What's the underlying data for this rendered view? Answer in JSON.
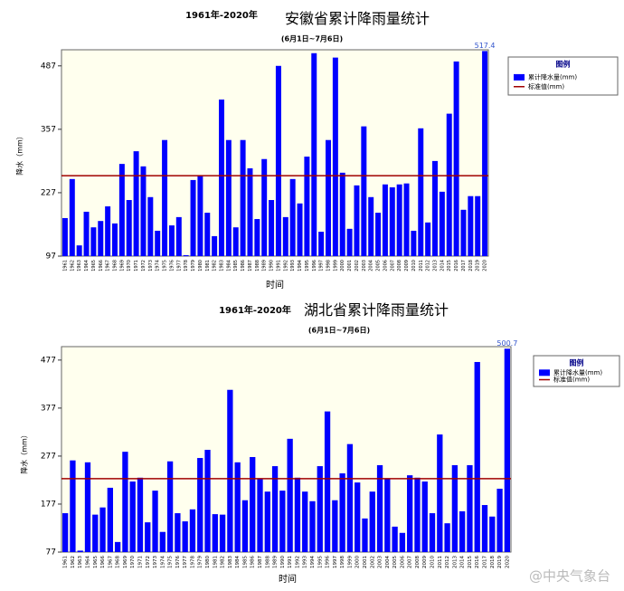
{
  "chart_data": [
    {
      "type": "bar",
      "pretitle": "1961年-2020年",
      "title": "安徽省累计降雨量统计",
      "subtitle": "(6月1日~7月6日)",
      "y_label": "降水（mm）",
      "x_label": "时间",
      "legend_title": "图例",
      "legend": "top-right",
      "categories": [
        "1961",
        "1962",
        "1963",
        "1964",
        "1965",
        "1966",
        "1967",
        "1968",
        "1969",
        "1970",
        "1971",
        "1972",
        "1973",
        "1974",
        "1975",
        "1976",
        "1977",
        "1978",
        "1979",
        "1980",
        "1981",
        "1982",
        "1983",
        "1984",
        "1985",
        "1986",
        "1987",
        "1988",
        "1989",
        "1990",
        "1991",
        "1992",
        "1993",
        "1994",
        "1995",
        "1996",
        "1997",
        "1998",
        "1999",
        "2000",
        "2001",
        "2002",
        "2003",
        "2004",
        "2005",
        "2006",
        "2007",
        "2008",
        "2009",
        "2010",
        "2011",
        "2012",
        "2013",
        "2014",
        "2015",
        "2016",
        "2017",
        "2018",
        "2019",
        "2020"
      ],
      "series": [
        {
          "name": "累计降水量(mm)",
          "color": "#0000ff",
          "values": [
            175,
            255,
            119,
            188,
            156,
            169,
            199,
            164,
            286,
            212,
            312,
            281,
            218,
            149,
            335,
            160,
            177,
            99,
            253,
            262,
            186,
            138,
            418,
            335,
            156,
            335,
            277,
            173,
            296,
            212,
            487,
            177,
            255,
            205,
            301,
            513,
            147,
            335,
            504,
            268,
            153,
            242,
            363,
            218,
            186,
            244,
            238,
            244,
            246,
            149,
            359,
            166,
            292,
            229,
            389,
            496,
            192,
            220,
            220,
            517.4
          ]
        }
      ],
      "reference": {
        "name": "标准值(mm)",
        "color": "#a00000",
        "value": 262
      },
      "label_max": true,
      "ylim": [
        97,
        520
      ],
      "yticks": [
        97,
        227,
        357,
        487
      ]
    },
    {
      "type": "bar",
      "pretitle": "1961年-2020年",
      "title": "湖北省累计降雨量统计",
      "subtitle": "(6月1日~7月6日)",
      "y_label": "降水（mm）",
      "x_label": "时间",
      "legend_title": "图例",
      "legend": "top-right",
      "categories": [
        "1961",
        "1962",
        "1963",
        "1964",
        "1965",
        "1966",
        "1967",
        "1968",
        "1969",
        "1970",
        "1971",
        "1972",
        "1973",
        "1974",
        "1975",
        "1976",
        "1977",
        "1978",
        "1979",
        "1980",
        "1981",
        "1982",
        "1983",
        "1984",
        "1985",
        "1986",
        "1987",
        "1988",
        "1989",
        "1990",
        "1991",
        "1992",
        "1993",
        "1994",
        "1995",
        "1996",
        "1997",
        "1998",
        "1999",
        "2000",
        "2001",
        "2002",
        "2003",
        "2004",
        "2005",
        "2006",
        "2007",
        "2008",
        "2009",
        "2010",
        "2011",
        "2012",
        "2013",
        "2014",
        "2015",
        "2016",
        "2017",
        "2018",
        "2019",
        "2020"
      ],
      "series": [
        {
          "name": "累计降水量(mm)",
          "color": "#0000ff",
          "values": [
            158,
            268,
            80,
            264,
            155,
            170,
            211,
            98,
            286,
            224,
            232,
            139,
            205,
            119,
            266,
            158,
            141,
            166,
            273,
            290,
            156,
            155,
            415,
            264,
            185,
            275,
            230,
            203,
            256,
            205,
            313,
            232,
            203,
            183,
            256,
            370,
            185,
            241,
            302,
            222,
            147,
            203,
            258,
            230,
            130,
            117,
            237,
            232,
            224,
            158,
            322,
            137,
            258,
            162,
            258,
            473,
            175,
            151,
            209,
            500.7
          ]
        }
      ],
      "reference": {
        "name": "标准值(mm)",
        "color": "#a00000",
        "value": 230
      },
      "label_max": true,
      "ylim": [
        77,
        505
      ],
      "yticks": [
        77,
        177,
        277,
        377,
        477
      ]
    }
  ],
  "watermark": "@中央气象台"
}
